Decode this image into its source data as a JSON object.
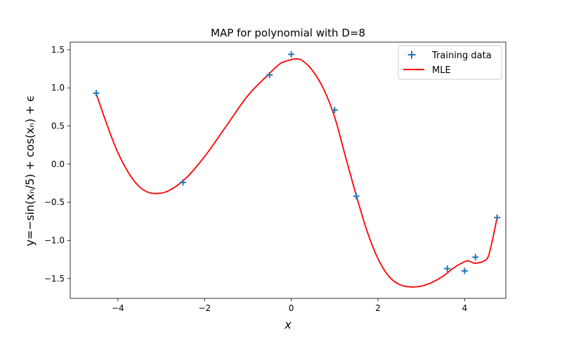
{
  "chart_data": {
    "type": "scatter",
    "title": "MAP for polynomial with D=8",
    "xlabel": "x",
    "ylabel": "y=−sin(xₙ/5) + cos(xₙ) + ϵ",
    "xlim": [
      -5.1,
      4.95
    ],
    "ylim": [
      -1.76,
      1.6
    ],
    "xticks": [
      -4,
      -2,
      0,
      2,
      4
    ],
    "xtick_labels": [
      "−4",
      "−2",
      "0",
      "2",
      "4"
    ],
    "yticks": [
      1.5,
      1.0,
      0.5,
      0.0,
      -0.5,
      -1.0,
      -1.5
    ],
    "ytick_labels": [
      "1.5",
      "1.0",
      "0.5",
      "0.0",
      "−0.5",
      "−1.0",
      "−1.5"
    ],
    "grid": false,
    "legend_position": "top-right",
    "series": [
      {
        "name": "Training data",
        "kind": "scatter",
        "marker": "plus",
        "color": "#1f77b4",
        "x": [
          -4.5,
          -2.5,
          -0.5,
          0.0,
          1.0,
          1.5,
          3.6,
          4.0,
          4.25,
          4.75
        ],
        "y": [
          0.93,
          -0.24,
          1.17,
          1.44,
          0.71,
          -0.42,
          -1.37,
          -1.4,
          -1.22,
          -0.7
        ]
      },
      {
        "name": "MLE",
        "kind": "line",
        "color": "#ff0000",
        "x": [
          -4.5,
          -4.0,
          -3.5,
          -3.0,
          -2.5,
          -2.0,
          -1.5,
          -1.0,
          -0.5,
          -0.25,
          0.0,
          0.1,
          0.25,
          0.5,
          0.75,
          1.0,
          1.25,
          1.5,
          1.75,
          2.0,
          2.25,
          2.5,
          2.75,
          3.0,
          3.25,
          3.5,
          3.75,
          4.0,
          4.1,
          4.25,
          4.5,
          4.6,
          4.75
        ],
        "y": [
          0.92,
          0.15,
          -0.3,
          -0.38,
          -0.22,
          0.1,
          0.5,
          0.9,
          1.19,
          1.32,
          1.37,
          1.38,
          1.36,
          1.22,
          0.98,
          0.62,
          0.1,
          -0.41,
          -0.88,
          -1.24,
          -1.47,
          -1.58,
          -1.61,
          -1.6,
          -1.55,
          -1.47,
          -1.36,
          -1.28,
          -1.27,
          -1.3,
          -1.25,
          -1.1,
          -0.7
        ]
      }
    ]
  }
}
